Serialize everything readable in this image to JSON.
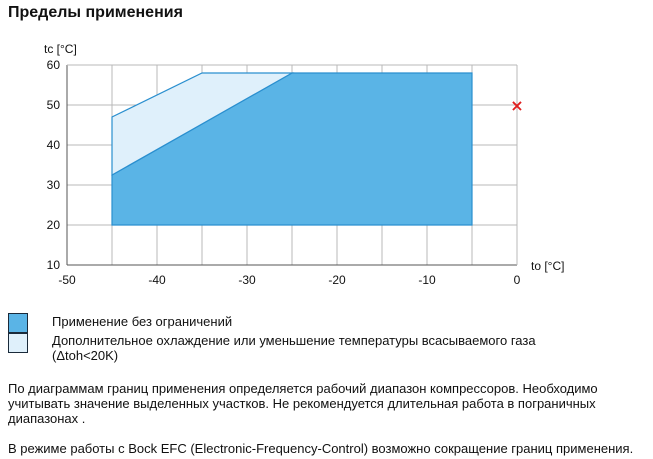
{
  "page_title": "Пределы применения",
  "chart_data": {
    "type": "area",
    "ylabel": "tc [°C]",
    "xlabel": "to [°C]",
    "xlim": [
      -50,
      0
    ],
    "ylim": [
      10,
      60
    ],
    "x_ticks": [
      -50,
      -40,
      -30,
      -20,
      -10,
      0
    ],
    "y_ticks": [
      10,
      20,
      30,
      40,
      50,
      60
    ],
    "grid": true,
    "series": [
      {
        "key": "unlimited",
        "color": "#5ab4e6",
        "polygon": [
          [
            -45,
            20
          ],
          [
            -5,
            20
          ],
          [
            -5,
            58
          ],
          [
            -25,
            58
          ],
          [
            -45,
            32.5
          ]
        ]
      },
      {
        "key": "additional",
        "color": "#dff0fb",
        "polygon": [
          [
            -45,
            32.5
          ],
          [
            -25,
            58
          ],
          [
            -35,
            58
          ],
          [
            -45,
            47
          ]
        ]
      }
    ],
    "marker": {
      "x": 0,
      "y": 50,
      "symbol": "×",
      "color": "#e02020"
    }
  },
  "legend": [
    {
      "label": "Применение без ограничений",
      "color": "#5ab4e6"
    },
    {
      "label": "Дополнительное охлаждение или уменьшение температуры всасываемого газа",
      "label2": "(Δtoh<20K)",
      "color": "#dff0fb"
    }
  ],
  "notes": {
    "para1": "По диаграммам границ применения определяется рабочий диапазон компрессоров. Необходимо учитывать значение выделенных участков. Не рекомендуется длительная работа в пограничных диапазонах .",
    "para2": "В режиме работы с Bock EFC (Electronic-Frequency-Control) возможно сокращение границ применения."
  }
}
